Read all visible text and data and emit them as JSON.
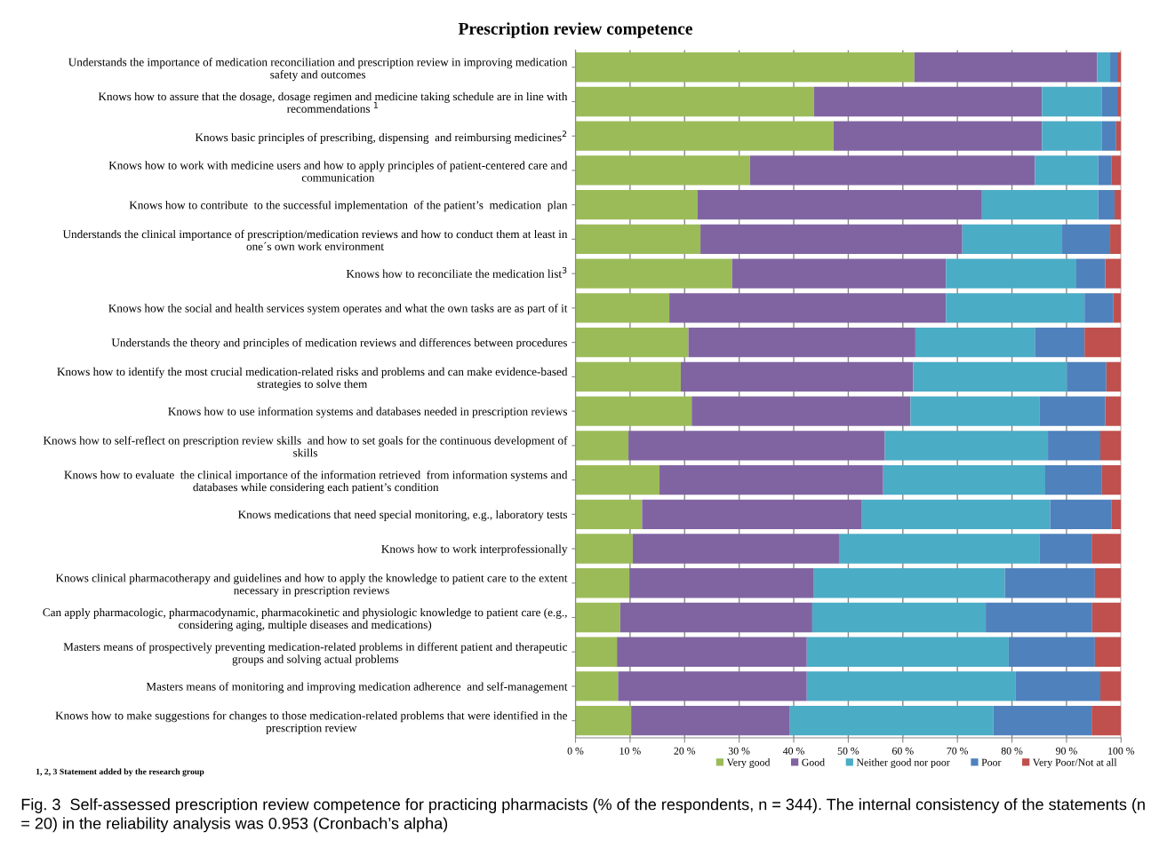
{
  "chart_data": {
    "type": "bar",
    "orientation": "horizontal",
    "stacked": true,
    "title": "Prescription review competence",
    "categories": [
      "Understands the importance of medication reconciliation and prescription review in improving medication\nsafety and outcomes",
      "Knows how to assure that the dosage, dosage regimen and medicine taking schedule are in line with\nrecommendations $^{1}$",
      "Knows basic principles of prescribing, dispensing  and reimbursing medicines$^{2}$",
      "Knows how to work with medicine users and how to apply principles of patient-centered care and\ncommunication",
      "Knows how to contribute  to the successful implementation  of the patient’s  medication  plan",
      "Understands the clinical importance of prescription/medication reviews and how to conduct them at least in\none´s own work environment",
      "Knows how to reconciliate the medication list$^{3}$",
      "Knows how the social and health services system operates and what the own tasks are as part of it",
      "Understands the theory and principles of medication reviews and differences between procedures",
      "Knows how to identify the most crucial medication-related risks and problems and can make evidence-based\nstrategies to solve them",
      "Knows how to use information systems and databases needed in prescription reviews",
      "Knows how to self-reflect on prescription review skills  and how to set goals for the continuous development of\nskills",
      "Knows how to evaluate  the clinical importance of the information retrieved  from information systems and\ndatabases while considering each patient’s condition",
      "Knows medications that need special monitoring, e.g., laboratory tests",
      "Knows how to work interprofessionally",
      "Knows clinical pharmacotherapy and guidelines and how to apply the knowledge to patient care to the extent\nnecessary in prescription reviews",
      "Can apply pharmacologic, pharmacodynamic, pharmacokinetic and physiologic knowledge to patient care (e.g.,\nconsidering aging, multiple diseases and medications)",
      "Masters means of prospectively preventing medication-related problems in different patient and therapeutic\ngroups and solving actual problems",
      "Masters means of monitoring and improving medication adherence  and self-management",
      "Knows how to make suggestions for changes to those medication-related problems that were identified in the\nprescription review"
    ],
    "series": [
      {
        "name": "Very good",
        "color": "#9bbb59",
        "values": [
          62.1,
          43.7,
          47.3,
          32.0,
          22.4,
          22.9,
          28.7,
          17.2,
          20.7,
          19.3,
          21.3,
          9.7,
          15.4,
          12.2,
          10.5,
          9.9,
          8.2,
          7.6,
          7.8,
          10.2
        ]
      },
      {
        "name": "Good",
        "color": "#8064a2",
        "values": [
          33.5,
          41.8,
          38.2,
          52.2,
          52.1,
          48.0,
          39.2,
          50.7,
          41.6,
          42.6,
          40.1,
          47.0,
          41.0,
          40.3,
          37.8,
          33.8,
          35.2,
          34.8,
          34.6,
          29.1
        ]
      },
      {
        "name": "Neither good nor poor",
        "color": "#4bacc6",
        "values": [
          2.4,
          11.0,
          11.0,
          11.6,
          21.3,
          18.3,
          23.9,
          25.4,
          21.9,
          28.2,
          23.7,
          29.9,
          29.7,
          34.5,
          36.8,
          35.0,
          31.8,
          37.0,
          38.3,
          37.3
        ]
      },
      {
        "name": "Poor",
        "color": "#4f81bd",
        "values": [
          1.3,
          2.8,
          2.6,
          2.4,
          3.0,
          8.8,
          5.3,
          5.3,
          9.1,
          7.2,
          12.0,
          9.6,
          10.4,
          11.2,
          9.5,
          16.5,
          19.5,
          15.8,
          15.5,
          18.0
        ]
      },
      {
        "name": "Very Poor/Not at all",
        "color": "#c0504d",
        "values": [
          0.7,
          0.7,
          0.9,
          1.8,
          1.2,
          2.0,
          2.9,
          1.4,
          6.7,
          2.7,
          2.9,
          3.8,
          3.5,
          1.8,
          5.4,
          4.8,
          5.3,
          4.8,
          3.8,
          5.4
        ]
      }
    ],
    "xlim": [
      0,
      100
    ],
    "xticks": [
      {
        "value": 0,
        "label": "0 %"
      },
      {
        "value": 10,
        "label": "10 %"
      },
      {
        "value": 20,
        "label": "20 %"
      },
      {
        "value": 30,
        "label": "30 %"
      },
      {
        "value": 40,
        "label": "40 %"
      },
      {
        "value": 50,
        "label": "50 %"
      },
      {
        "value": 60,
        "label": "60 %"
      },
      {
        "value": 70,
        "label": "70 %"
      },
      {
        "value": 80,
        "label": "80 %"
      },
      {
        "value": 90,
        "label": "90 %"
      },
      {
        "value": 100,
        "label": "100 %"
      }
    ],
    "grid": "x",
    "legend": "bottom right",
    "annotations": [
      "1, 2, 3 Statement added by the research group",
      "Fig. 3  Self-assessed prescription review competence for practicing pharmacists (% of the respondents, n = 344). The internal consistency of the statements (n = 20) in the reliability analysis was 0.953 (Cronbach’s alpha)"
    ]
  }
}
